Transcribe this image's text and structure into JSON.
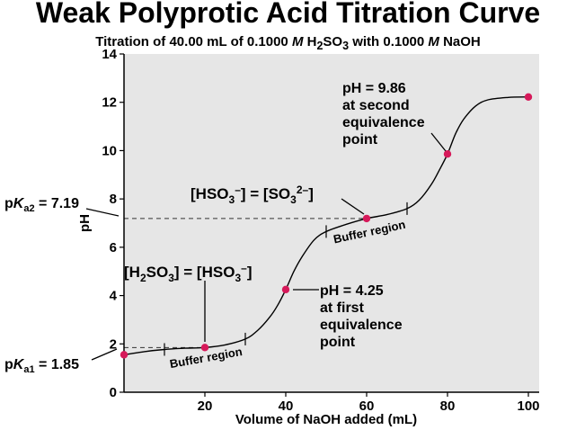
{
  "title": "Weak Polyprotic Acid Titration Curve",
  "subtitle": {
    "pre": "Titration of 40.00 mL of 0.1000 ",
    "m1": "M",
    "mid": " H",
    "sub": "2",
    "mid2": "SO",
    "sub2": "3",
    "mid3": " with 0.1000 ",
    "m2": "M",
    "post": " NaOH"
  },
  "chart_data": {
    "type": "line",
    "title": "Weak Polyprotic Acid Titration Curve",
    "xlabel": "Volume of NaOH added (mL)",
    "ylabel": "pH",
    "xlim": [
      0,
      100
    ],
    "ylim": [
      0,
      14
    ],
    "xticks": [
      20,
      40,
      60,
      80,
      100
    ],
    "yticks": [
      0,
      2,
      4,
      6,
      8,
      10,
      12,
      14
    ],
    "grid": false,
    "plot_background": "#e6e6e6",
    "curve_color": "#000000",
    "point_color": "#d6195a",
    "series": [
      {
        "x": [
          0,
          5,
          10,
          15,
          20,
          25,
          30,
          33,
          36,
          38,
          40,
          42,
          44,
          47,
          50,
          55,
          60,
          65,
          70,
          73,
          76,
          78,
          80,
          82,
          84,
          87,
          90,
          95,
          100
        ],
        "y": [
          1.55,
          1.68,
          1.77,
          1.82,
          1.85,
          1.96,
          2.2,
          2.55,
          3.1,
          3.6,
          4.25,
          5.0,
          5.6,
          6.3,
          6.65,
          6.95,
          7.19,
          7.35,
          7.6,
          7.95,
          8.6,
          9.2,
          9.86,
          10.7,
          11.3,
          11.85,
          12.1,
          12.2,
          12.22
        ]
      }
    ],
    "highlight_points": [
      {
        "x": 0,
        "y": 1.55
      },
      {
        "x": 20,
        "y": 1.85
      },
      {
        "x": 40,
        "y": 4.25
      },
      {
        "x": 60,
        "y": 7.19
      },
      {
        "x": 80,
        "y": 9.86
      },
      {
        "x": 100,
        "y": 12.22
      }
    ],
    "reference_lines": [
      {
        "y": 1.85,
        "x_start": 0,
        "x_end": 20,
        "style": "dashed"
      },
      {
        "y": 7.19,
        "x_start": 0,
        "x_end": 60,
        "style": "dashed"
      }
    ],
    "buffer_ticks": [
      10,
      30,
      50,
      70
    ],
    "annotations": {
      "pka1": {
        "pre": "p",
        "k": "K",
        "sub": "a1",
        "post": " = 1.85"
      },
      "pka2": {
        "pre": "p",
        "k": "K",
        "sub": "a2",
        "post": " = 7.19"
      },
      "eq_h2so3": {
        "lb1": "[H",
        "s1": "2",
        "t1": "SO",
        "s2": "3",
        "t2": "] = [HSO",
        "s3": "3",
        "sup1": "–",
        "t3": "]"
      },
      "eq_hso3": {
        "t1": "[HSO",
        "s1": "3",
        "sup1": "–",
        "t2": "] = [SO",
        "s2": "3",
        "sup2": "2–",
        "t3": "]"
      },
      "first_eq": [
        "pH = 4.25",
        "at first",
        "equivalence",
        "point"
      ],
      "second_eq": [
        "pH = 9.86",
        "at second",
        "equivalence",
        "point"
      ],
      "buffer1": "Buffer region",
      "buffer2": "Buffer region"
    }
  }
}
